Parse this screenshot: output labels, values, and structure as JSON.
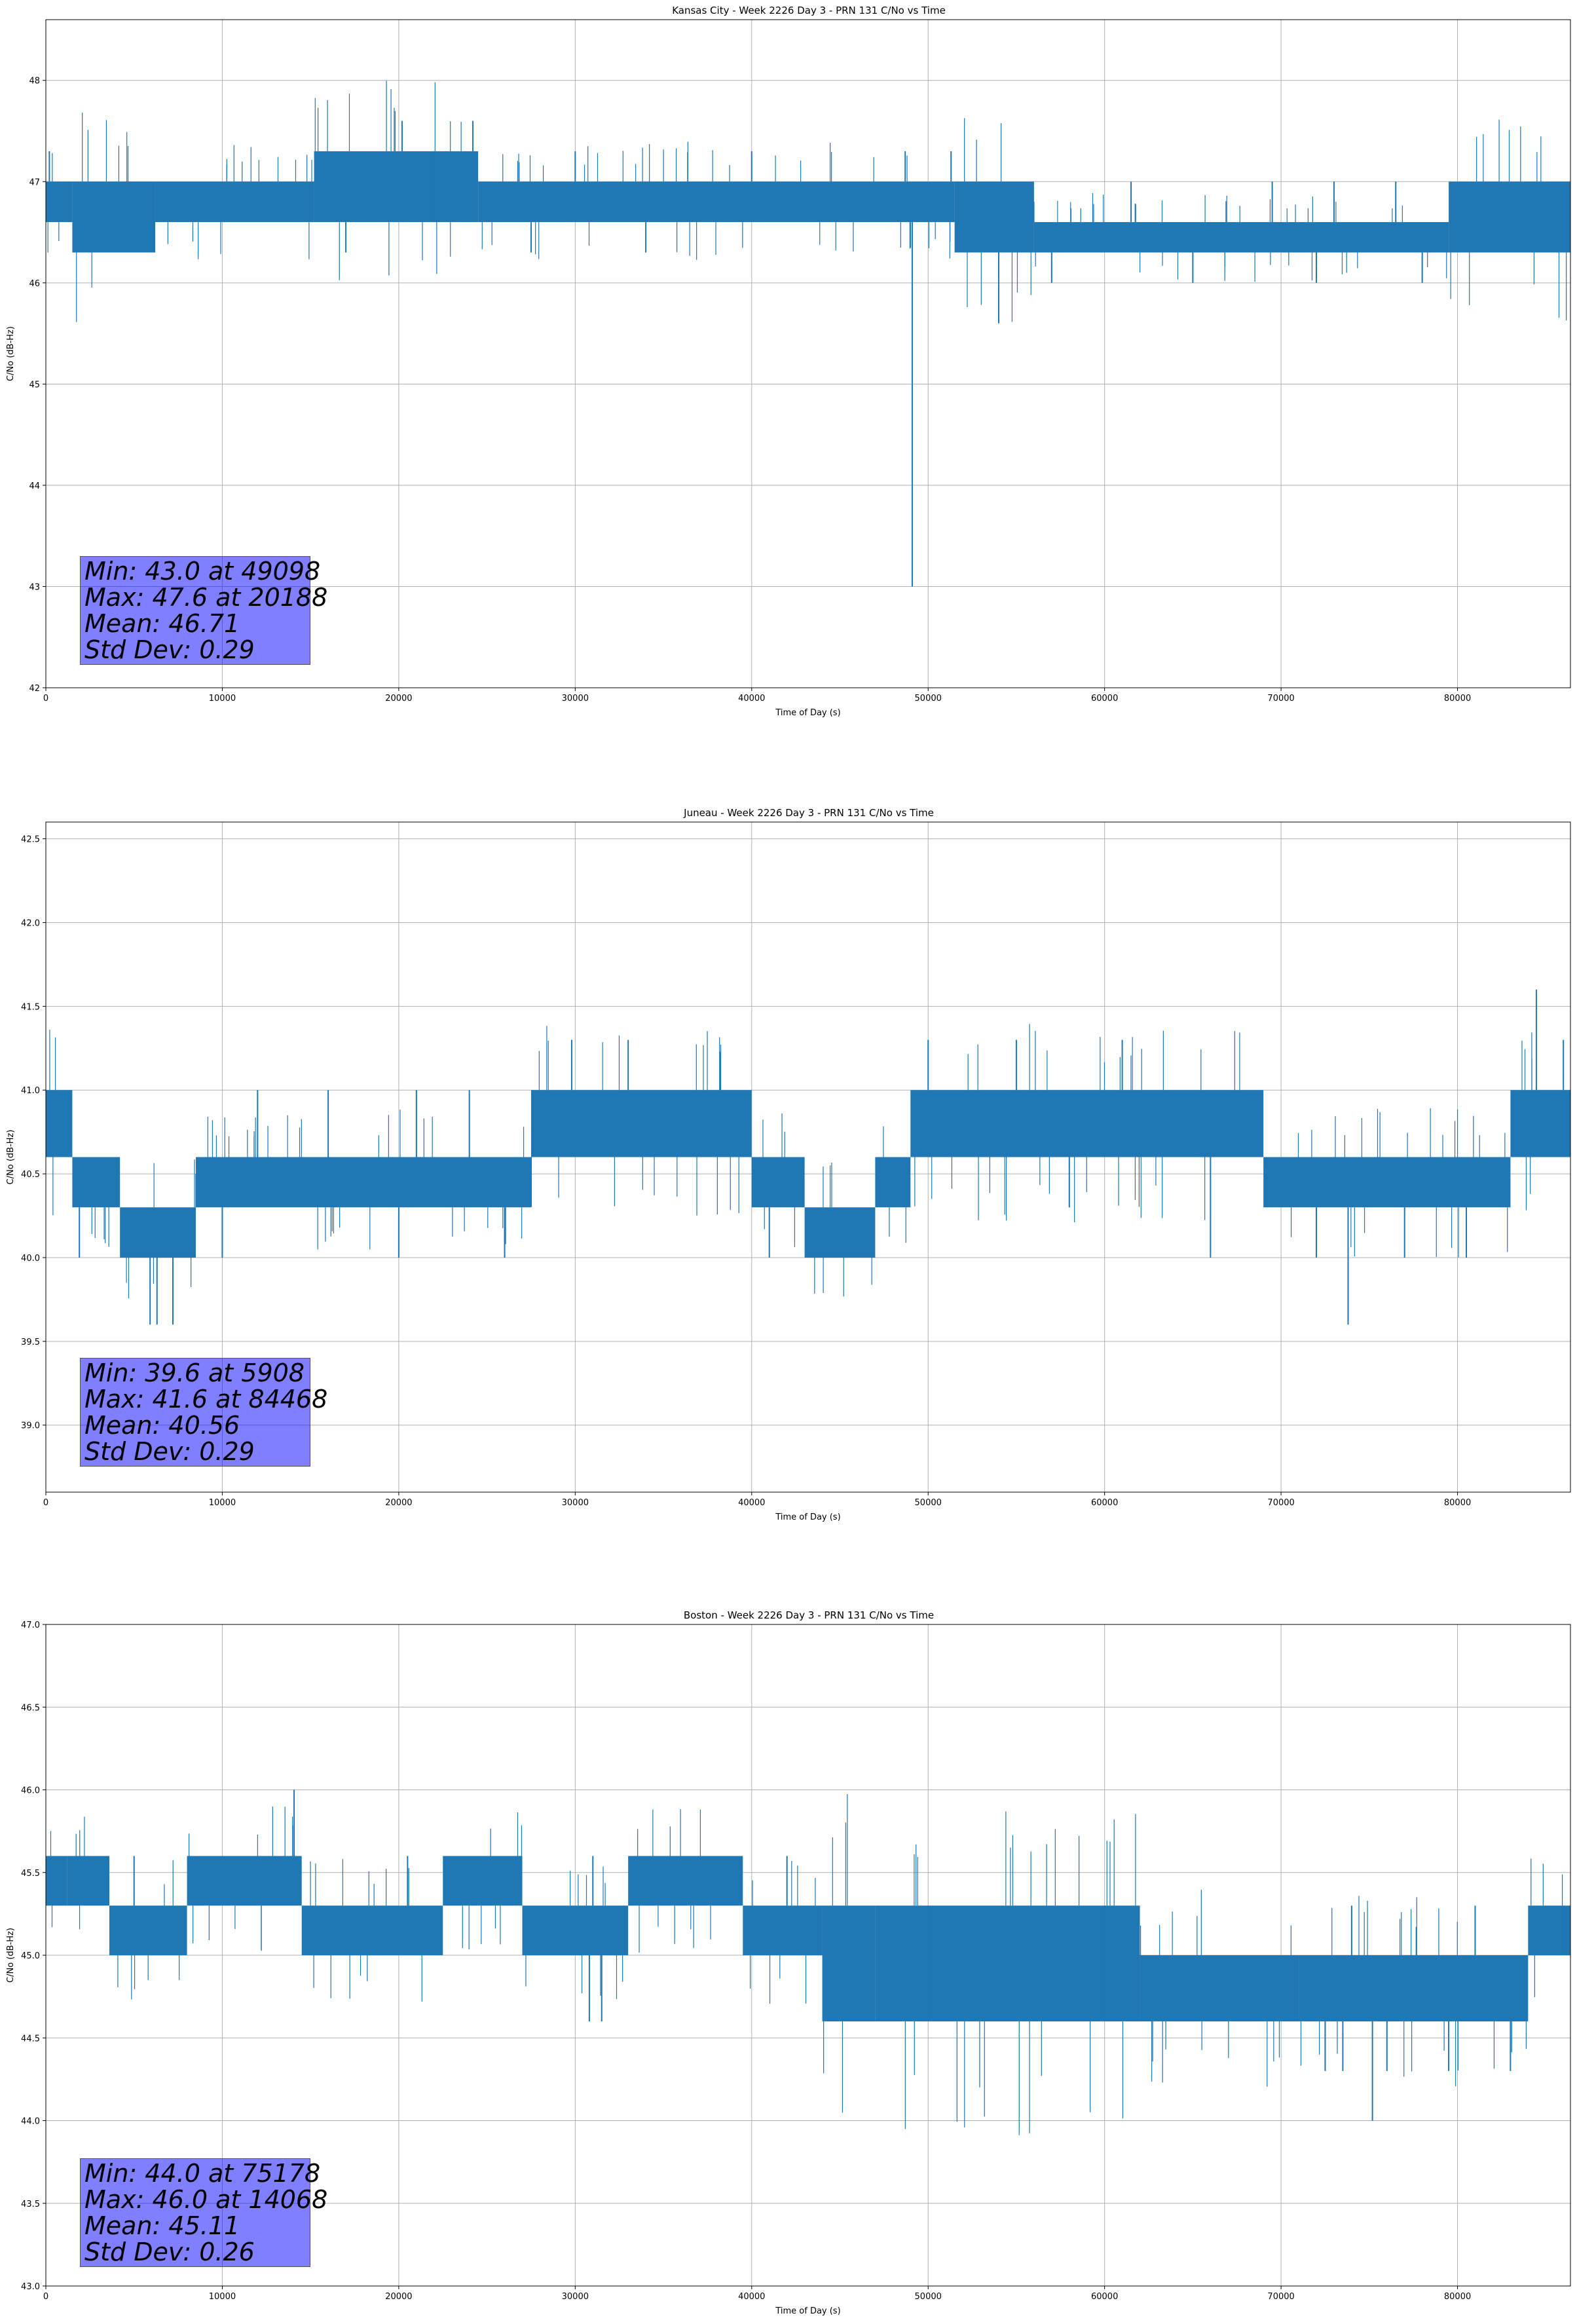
{
  "chart_data": [
    {
      "type": "line",
      "title": "Kansas City - Week 2226 Day 3 - PRN 131 C/No vs Time",
      "xlabel": "Time of Day (s)",
      "ylabel": "C/No (dB-Hz)",
      "xlim": [
        0,
        86400
      ],
      "ylim": [
        42,
        48.6
      ],
      "xticks": [
        0,
        10000,
        20000,
        30000,
        40000,
        50000,
        60000,
        70000,
        80000
      ],
      "yticks": [
        42,
        43,
        44,
        45,
        46,
        47,
        48
      ],
      "ytick_labels": [
        "42",
        "43",
        "44",
        "45",
        "46",
        "47",
        "48"
      ],
      "grid": true,
      "color": "#1f77b4",
      "segments": [
        {
          "x0": 0,
          "x1": 1500,
          "lo": 46.6,
          "hi": 47.0
        },
        {
          "x0": 1500,
          "x1": 6200,
          "lo": 46.3,
          "hi": 47.0
        },
        {
          "x0": 6200,
          "x1": 15200,
          "lo": 46.6,
          "hi": 47.0
        },
        {
          "x0": 15200,
          "x1": 24500,
          "lo": 46.6,
          "hi": 47.3
        },
        {
          "x0": 24500,
          "x1": 51500,
          "lo": 46.6,
          "hi": 47.0
        },
        {
          "x0": 51500,
          "x1": 56000,
          "lo": 46.3,
          "hi": 47.0
        },
        {
          "x0": 56000,
          "x1": 79500,
          "lo": 46.3,
          "hi": 46.6
        },
        {
          "x0": 79500,
          "x1": 86400,
          "lo": 46.3,
          "hi": 47.0
        }
      ],
      "spikes": [
        {
          "x": 200,
          "y": 47.3
        },
        {
          "x": 20188,
          "y": 47.6
        },
        {
          "x": 24200,
          "y": 47.6
        },
        {
          "x": 49098,
          "y": 43.0
        },
        {
          "x": 54000,
          "y": 45.6
        },
        {
          "x": 27500,
          "y": 46.3
        },
        {
          "x": 34000,
          "y": 46.3
        },
        {
          "x": 40000,
          "y": 47.3
        },
        {
          "x": 17000,
          "y": 46.3
        },
        {
          "x": 22000,
          "y": 47.3
        },
        {
          "x": 30000,
          "y": 47.3
        },
        {
          "x": 48700,
          "y": 47.3
        },
        {
          "x": 51300,
          "y": 47.3
        },
        {
          "x": 57000,
          "y": 46.0
        },
        {
          "x": 65000,
          "y": 46.0
        },
        {
          "x": 72000,
          "y": 46.0
        },
        {
          "x": 78000,
          "y": 46.0
        },
        {
          "x": 61500,
          "y": 47.0
        },
        {
          "x": 69500,
          "y": 47.0
        },
        {
          "x": 73000,
          "y": 47.0
        },
        {
          "x": 76500,
          "y": 47.0
        }
      ],
      "stats": {
        "min": "Min: 43.0 at 49098",
        "max": "Max: 47.6 at 20188",
        "mean": "Mean: 46.71",
        "std": "Std Dev: 0.29"
      }
    },
    {
      "type": "line",
      "title": "Juneau - Week 2226 Day 3 - PRN 131 C/No vs Time",
      "xlabel": "Time of Day (s)",
      "ylabel": "C/No (dB-Hz)",
      "xlim": [
        0,
        86400
      ],
      "ylim": [
        38.6,
        42.6
      ],
      "xticks": [
        0,
        10000,
        20000,
        30000,
        40000,
        50000,
        60000,
        70000,
        80000
      ],
      "yticks": [
        39.0,
        39.5,
        40.0,
        40.5,
        41.0,
        41.5,
        42.0,
        42.5
      ],
      "ytick_labels": [
        "39.0",
        "39.5",
        "40.0",
        "40.5",
        "41.0",
        "41.5",
        "42.0",
        "42.5"
      ],
      "grid": true,
      "color": "#1f77b4",
      "segments": [
        {
          "x0": 0,
          "x1": 1500,
          "lo": 40.6,
          "hi": 41.0
        },
        {
          "x0": 1500,
          "x1": 4200,
          "lo": 40.3,
          "hi": 40.6
        },
        {
          "x0": 4200,
          "x1": 8500,
          "lo": 40.0,
          "hi": 40.3
        },
        {
          "x0": 8500,
          "x1": 27500,
          "lo": 40.3,
          "hi": 40.6
        },
        {
          "x0": 27500,
          "x1": 40000,
          "lo": 40.6,
          "hi": 41.0
        },
        {
          "x0": 40000,
          "x1": 43000,
          "lo": 40.3,
          "hi": 40.6
        },
        {
          "x0": 43000,
          "x1": 47000,
          "lo": 40.0,
          "hi": 40.3
        },
        {
          "x0": 47000,
          "x1": 49000,
          "lo": 40.3,
          "hi": 40.6
        },
        {
          "x0": 49000,
          "x1": 69000,
          "lo": 40.6,
          "hi": 41.0
        },
        {
          "x0": 69000,
          "x1": 83000,
          "lo": 40.3,
          "hi": 40.6
        },
        {
          "x0": 83000,
          "x1": 86400,
          "lo": 40.6,
          "hi": 41.0
        }
      ],
      "spikes": [
        {
          "x": 5908,
          "y": 39.6
        },
        {
          "x": 6300,
          "y": 39.6
        },
        {
          "x": 7200,
          "y": 39.6
        },
        {
          "x": 73800,
          "y": 39.6
        },
        {
          "x": 84468,
          "y": 41.6
        },
        {
          "x": 1900,
          "y": 40.0
        },
        {
          "x": 29800,
          "y": 41.3
        },
        {
          "x": 33000,
          "y": 41.3
        },
        {
          "x": 50000,
          "y": 41.3
        },
        {
          "x": 55000,
          "y": 41.3
        },
        {
          "x": 61000,
          "y": 41.3
        },
        {
          "x": 86000,
          "y": 41.3
        },
        {
          "x": 12000,
          "y": 41.0
        },
        {
          "x": 16000,
          "y": 41.0
        },
        {
          "x": 21000,
          "y": 41.0
        },
        {
          "x": 24000,
          "y": 41.0
        },
        {
          "x": 41000,
          "y": 40.0
        },
        {
          "x": 10000,
          "y": 40.0
        },
        {
          "x": 20000,
          "y": 40.0
        },
        {
          "x": 26000,
          "y": 40.0
        },
        {
          "x": 58000,
          "y": 40.3
        },
        {
          "x": 66000,
          "y": 40.0
        },
        {
          "x": 72000,
          "y": 40.0
        },
        {
          "x": 77000,
          "y": 40.0
        },
        {
          "x": 80500,
          "y": 40.0
        }
      ],
      "stats": {
        "min": "Min: 39.6 at 5908",
        "max": "Max: 41.6 at 84468",
        "mean": "Mean: 40.56",
        "std": "Std Dev: 0.29"
      }
    },
    {
      "type": "line",
      "title": "Boston - Week 2226 Day 3 - PRN 131 C/No vs Time",
      "xlabel": "Time of Day (s)",
      "ylabel": "C/No (dB-Hz)",
      "xlim": [
        0,
        86400
      ],
      "ylim": [
        43.0,
        47.0
      ],
      "xticks": [
        0,
        10000,
        20000,
        30000,
        40000,
        50000,
        60000,
        70000,
        80000
      ],
      "yticks": [
        43.0,
        43.5,
        44.0,
        44.5,
        45.0,
        45.5,
        46.0,
        46.5,
        47.0
      ],
      "ytick_labels": [
        "43.0",
        "43.5",
        "44.0",
        "44.5",
        "45.0",
        "45.5",
        "46.0",
        "46.5",
        "47.0"
      ],
      "grid": true,
      "color": "#1f77b4",
      "segments": [
        {
          "x0": 0,
          "x1": 1200,
          "lo": 45.3,
          "hi": 45.6
        },
        {
          "x0": 1200,
          "x1": 3600,
          "lo": 45.3,
          "hi": 45.6
        },
        {
          "x0": 3600,
          "x1": 8000,
          "lo": 45.0,
          "hi": 45.3
        },
        {
          "x0": 8000,
          "x1": 14500,
          "lo": 45.3,
          "hi": 45.6
        },
        {
          "x0": 14500,
          "x1": 22500,
          "lo": 45.0,
          "hi": 45.3
        },
        {
          "x0": 22500,
          "x1": 27000,
          "lo": 45.3,
          "hi": 45.6
        },
        {
          "x0": 27000,
          "x1": 33000,
          "lo": 45.0,
          "hi": 45.3
        },
        {
          "x0": 33000,
          "x1": 39500,
          "lo": 45.3,
          "hi": 45.6
        },
        {
          "x0": 39500,
          "x1": 44000,
          "lo": 45.0,
          "hi": 45.3
        },
        {
          "x0": 44000,
          "x1": 47000,
          "lo": 44.6,
          "hi": 45.3
        },
        {
          "x0": 47000,
          "x1": 62000,
          "lo": 44.6,
          "hi": 45.3
        },
        {
          "x0": 62000,
          "x1": 71000,
          "lo": 44.6,
          "hi": 45.0
        },
        {
          "x0": 71000,
          "x1": 84000,
          "lo": 44.6,
          "hi": 45.0
        },
        {
          "x0": 84000,
          "x1": 86400,
          "lo": 45.0,
          "hi": 45.3
        }
      ],
      "spikes": [
        {
          "x": 14068,
          "y": 46.0
        },
        {
          "x": 75178,
          "y": 44.0
        },
        {
          "x": 30800,
          "y": 44.6
        },
        {
          "x": 31500,
          "y": 44.6
        },
        {
          "x": 72500,
          "y": 44.3
        },
        {
          "x": 73500,
          "y": 44.3
        },
        {
          "x": 76000,
          "y": 44.3
        },
        {
          "x": 79500,
          "y": 44.3
        },
        {
          "x": 83000,
          "y": 44.3
        },
        {
          "x": 5000,
          "y": 45.6
        },
        {
          "x": 20500,
          "y": 45.6
        },
        {
          "x": 31000,
          "y": 45.6
        },
        {
          "x": 42000,
          "y": 45.6
        },
        {
          "x": 50000,
          "y": 45.3
        },
        {
          "x": 60000,
          "y": 45.3
        },
        {
          "x": 74000,
          "y": 45.3
        },
        {
          "x": 81000,
          "y": 45.3
        },
        {
          "x": 86000,
          "y": 45.3
        }
      ],
      "stats": {
        "min": "Min: 44.0 at 75178",
        "max": "Max: 46.0 at 14068",
        "mean": "Mean: 45.11",
        "std": "Std Dev: 0.26"
      }
    }
  ]
}
